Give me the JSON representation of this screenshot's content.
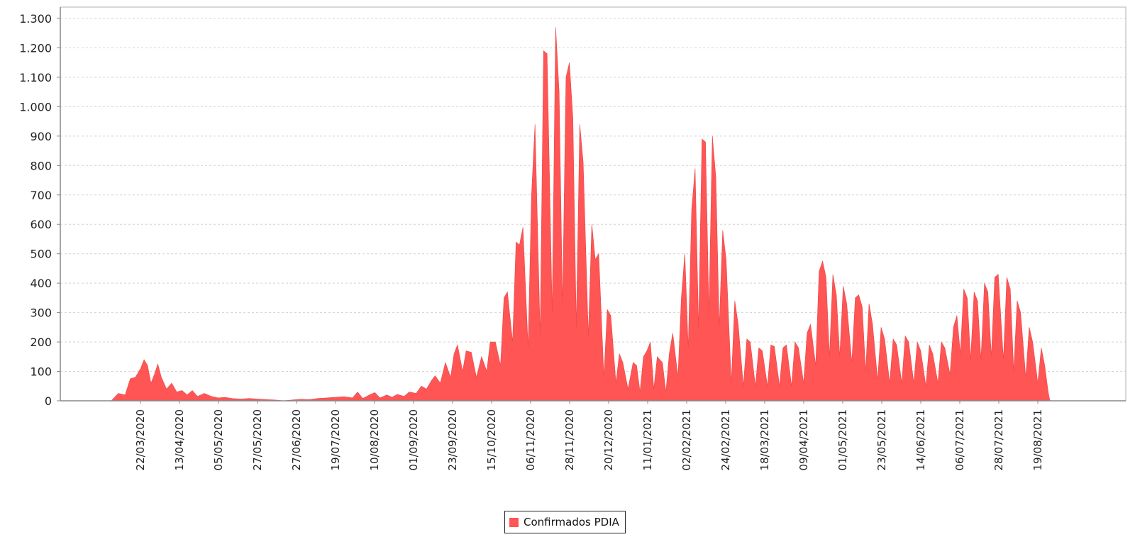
{
  "chart_data": {
    "type": "area",
    "title": "",
    "xlabel": "",
    "ylabel": "",
    "ylim": [
      0,
      1300
    ],
    "yticks": [
      0,
      100,
      200,
      300,
      400,
      500,
      600,
      700,
      800,
      900,
      1000,
      1100,
      1200,
      1300
    ],
    "ytick_labels": [
      "0",
      "100",
      "200",
      "300",
      "400",
      "500",
      "600",
      "700",
      "800",
      "900",
      "1.000",
      "1.100",
      "1.200",
      "1.300"
    ],
    "xtick_labels": [
      "22/03/2020",
      "13/04/2020",
      "05/05/2020",
      "27/05/2020",
      "27/06/2020",
      "19/07/2020",
      "10/08/2020",
      "01/09/2020",
      "23/09/2020",
      "15/10/2020",
      "06/11/2020",
      "28/11/2020",
      "20/12/2020",
      "11/01/2021",
      "02/02/2021",
      "24/02/2021",
      "18/03/2021",
      "09/04/2021",
      "01/05/2021",
      "23/05/2021",
      "14/06/2021",
      "06/07/2021",
      "28/07/2021",
      "19/08/2021"
    ],
    "grid": true,
    "legend_position": "bottom-center",
    "series": [
      {
        "name": "Confirmados PDIA",
        "color": "#ff5555",
        "x_start": "28/02/2020",
        "x_end": "26/08/2021",
        "weekly_anchor_points": [
          [
            0,
            0
          ],
          [
            4,
            25
          ],
          [
            8,
            20
          ],
          [
            11,
            75
          ],
          [
            14,
            80
          ],
          [
            17,
            110
          ],
          [
            19,
            140
          ],
          [
            21,
            120
          ],
          [
            23,
            60
          ],
          [
            25,
            90
          ],
          [
            27,
            125
          ],
          [
            29,
            80
          ],
          [
            32,
            40
          ],
          [
            35,
            60
          ],
          [
            38,
            30
          ],
          [
            41,
            35
          ],
          [
            44,
            20
          ],
          [
            47,
            35
          ],
          [
            50,
            15
          ],
          [
            54,
            25
          ],
          [
            58,
            15
          ],
          [
            62,
            10
          ],
          [
            66,
            12
          ],
          [
            70,
            8
          ],
          [
            75,
            6
          ],
          [
            80,
            8
          ],
          [
            85,
            6
          ],
          [
            90,
            4
          ],
          [
            95,
            3
          ],
          [
            100,
            0
          ],
          [
            105,
            3
          ],
          [
            110,
            5
          ],
          [
            115,
            4
          ],
          [
            120,
            8
          ],
          [
            125,
            10
          ],
          [
            130,
            12
          ],
          [
            135,
            14
          ],
          [
            140,
            10
          ],
          [
            143,
            30
          ],
          [
            146,
            8
          ],
          [
            150,
            20
          ],
          [
            153,
            28
          ],
          [
            156,
            10
          ],
          [
            160,
            20
          ],
          [
            163,
            12
          ],
          [
            166,
            22
          ],
          [
            170,
            15
          ],
          [
            173,
            30
          ],
          [
            177,
            25
          ],
          [
            180,
            50
          ],
          [
            183,
            40
          ],
          [
            186,
            70
          ],
          [
            188,
            85
          ],
          [
            191,
            60
          ],
          [
            194,
            130
          ],
          [
            197,
            80
          ],
          [
            199,
            160
          ],
          [
            201,
            190
          ],
          [
            204,
            100
          ],
          [
            206,
            170
          ],
          [
            209,
            165
          ],
          [
            212,
            80
          ],
          [
            215,
            150
          ],
          [
            218,
            100
          ],
          [
            220,
            200
          ],
          [
            223,
            200
          ],
          [
            226,
            120
          ],
          [
            228,
            350
          ],
          [
            230,
            370
          ],
          [
            233,
            200
          ],
          [
            235,
            540
          ],
          [
            237,
            530
          ],
          [
            239,
            590
          ],
          [
            242,
            180
          ],
          [
            244,
            700
          ],
          [
            246,
            940
          ],
          [
            249,
            220
          ],
          [
            251,
            1190
          ],
          [
            253,
            1180
          ],
          [
            256,
            300
          ],
          [
            258,
            1270
          ],
          [
            260,
            1050
          ],
          [
            262,
            320
          ],
          [
            264,
            1100
          ],
          [
            266,
            1150
          ],
          [
            268,
            960
          ],
          [
            270,
            250
          ],
          [
            272,
            940
          ],
          [
            274,
            810
          ],
          [
            277,
            220
          ],
          [
            279,
            600
          ],
          [
            281,
            480
          ],
          [
            283,
            500
          ],
          [
            286,
            80
          ],
          [
            288,
            310
          ],
          [
            290,
            290
          ],
          [
            293,
            60
          ],
          [
            295,
            160
          ],
          [
            297,
            130
          ],
          [
            300,
            40
          ],
          [
            303,
            130
          ],
          [
            305,
            120
          ],
          [
            307,
            30
          ],
          [
            309,
            150
          ],
          [
            311,
            170
          ],
          [
            313,
            200
          ],
          [
            315,
            40
          ],
          [
            317,
            150
          ],
          [
            320,
            130
          ],
          [
            322,
            30
          ],
          [
            324,
            160
          ],
          [
            326,
            230
          ],
          [
            329,
            80
          ],
          [
            331,
            350
          ],
          [
            333,
            500
          ],
          [
            335,
            180
          ],
          [
            337,
            650
          ],
          [
            339,
            790
          ],
          [
            341,
            250
          ],
          [
            343,
            890
          ],
          [
            345,
            880
          ],
          [
            347,
            300
          ],
          [
            349,
            900
          ],
          [
            351,
            760
          ],
          [
            353,
            250
          ],
          [
            355,
            580
          ],
          [
            357,
            480
          ],
          [
            360,
            60
          ],
          [
            362,
            340
          ],
          [
            364,
            260
          ],
          [
            367,
            50
          ],
          [
            369,
            210
          ],
          [
            371,
            200
          ],
          [
            374,
            50
          ],
          [
            376,
            180
          ],
          [
            378,
            170
          ],
          [
            381,
            50
          ],
          [
            383,
            190
          ],
          [
            385,
            185
          ],
          [
            388,
            50
          ],
          [
            390,
            180
          ],
          [
            392,
            190
          ],
          [
            395,
            50
          ],
          [
            397,
            200
          ],
          [
            399,
            180
          ],
          [
            402,
            60
          ],
          [
            404,
            230
          ],
          [
            406,
            260
          ],
          [
            409,
            120
          ],
          [
            411,
            440
          ],
          [
            413,
            475
          ],
          [
            415,
            420
          ],
          [
            417,
            150
          ],
          [
            419,
            430
          ],
          [
            421,
            360
          ],
          [
            423,
            150
          ],
          [
            425,
            390
          ],
          [
            427,
            330
          ],
          [
            430,
            130
          ],
          [
            432,
            350
          ],
          [
            434,
            360
          ],
          [
            436,
            320
          ],
          [
            438,
            100
          ],
          [
            440,
            330
          ],
          [
            442,
            260
          ],
          [
            445,
            70
          ],
          [
            447,
            250
          ],
          [
            449,
            210
          ],
          [
            452,
            60
          ],
          [
            454,
            210
          ],
          [
            456,
            190
          ],
          [
            459,
            60
          ],
          [
            461,
            220
          ],
          [
            463,
            200
          ],
          [
            466,
            60
          ],
          [
            468,
            200
          ],
          [
            470,
            170
          ],
          [
            473,
            50
          ],
          [
            475,
            190
          ],
          [
            477,
            160
          ],
          [
            480,
            60
          ],
          [
            482,
            200
          ],
          [
            484,
            180
          ],
          [
            487,
            90
          ],
          [
            489,
            250
          ],
          [
            491,
            290
          ],
          [
            493,
            160
          ],
          [
            495,
            380
          ],
          [
            497,
            350
          ],
          [
            499,
            140
          ],
          [
            501,
            370
          ],
          [
            503,
            340
          ],
          [
            505,
            140
          ],
          [
            507,
            400
          ],
          [
            509,
            370
          ],
          [
            511,
            150
          ],
          [
            513,
            420
          ],
          [
            515,
            430
          ],
          [
            518,
            140
          ],
          [
            520,
            420
          ],
          [
            522,
            380
          ],
          [
            524,
            100
          ],
          [
            526,
            340
          ],
          [
            528,
            300
          ],
          [
            531,
            80
          ],
          [
            533,
            250
          ],
          [
            535,
            200
          ],
          [
            538,
            60
          ],
          [
            540,
            180
          ],
          [
            542,
            120
          ],
          [
            544,
            30
          ],
          [
            545,
            0
          ]
        ]
      }
    ]
  },
  "legend": {
    "label": "Confirmados PDIA",
    "swatch_color": "#ff5555"
  }
}
